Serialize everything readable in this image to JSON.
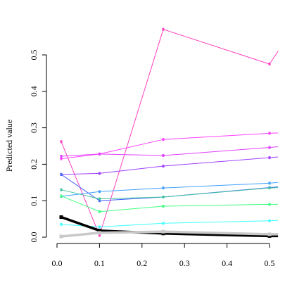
{
  "chart_data": {
    "type": "line",
    "title": "",
    "xlabel": "",
    "ylabel": "Predicted value",
    "xlim": [
      -0.01,
      0.52
    ],
    "ylim": [
      0.0,
      0.5
    ],
    "xticks": [
      "0.0",
      "0.1",
      "0.2",
      "0.3",
      "0.4",
      "0.5"
    ],
    "yticks": [
      "0.0",
      "0.1",
      "0.2",
      "0.3",
      "0.4",
      "0.5"
    ],
    "grid": false,
    "legend": "none",
    "x": [
      0.01,
      0.1,
      0.25,
      0.5,
      0.52
    ],
    "series": [
      {
        "color": "#ff40c0",
        "values": [
          0.262,
          0.005,
          0.57,
          0.475,
          0.51
        ],
        "width": 1
      },
      {
        "color": "#ff40ff",
        "values": [
          0.215,
          0.228,
          0.268,
          0.285,
          0.286
        ],
        "width": 1
      },
      {
        "color": "#e040ff",
        "values": [
          0.222,
          0.228,
          0.224,
          0.246,
          0.248
        ],
        "width": 1
      },
      {
        "color": "#a040ff",
        "values": [
          0.172,
          0.175,
          0.195,
          0.218,
          0.22
        ],
        "width": 1
      },
      {
        "color": "#4060ff",
        "values": [
          0.172,
          0.1,
          0.11,
          0.136,
          0.138
        ],
        "width": 1
      },
      {
        "color": "#40a0ff",
        "values": [
          0.112,
          0.125,
          0.135,
          0.148,
          0.15
        ],
        "width": 1
      },
      {
        "color": "#40c0a0",
        "values": [
          0.13,
          0.105,
          0.11,
          0.135,
          0.136
        ],
        "width": 1
      },
      {
        "color": "#40ff80",
        "values": [
          0.113,
          0.07,
          0.085,
          0.09,
          0.09
        ],
        "width": 1
      },
      {
        "color": "#40ffff",
        "values": [
          0.035,
          0.028,
          0.038,
          0.045,
          0.046
        ],
        "width": 1
      },
      {
        "color": "#000000",
        "values": [
          0.055,
          0.018,
          0.01,
          0.003,
          0.003
        ],
        "width": 3.5
      },
      {
        "color": "#c8c8c8",
        "values": [
          0.002,
          0.012,
          0.015,
          0.008,
          0.008
        ],
        "width": 3.5
      }
    ]
  }
}
